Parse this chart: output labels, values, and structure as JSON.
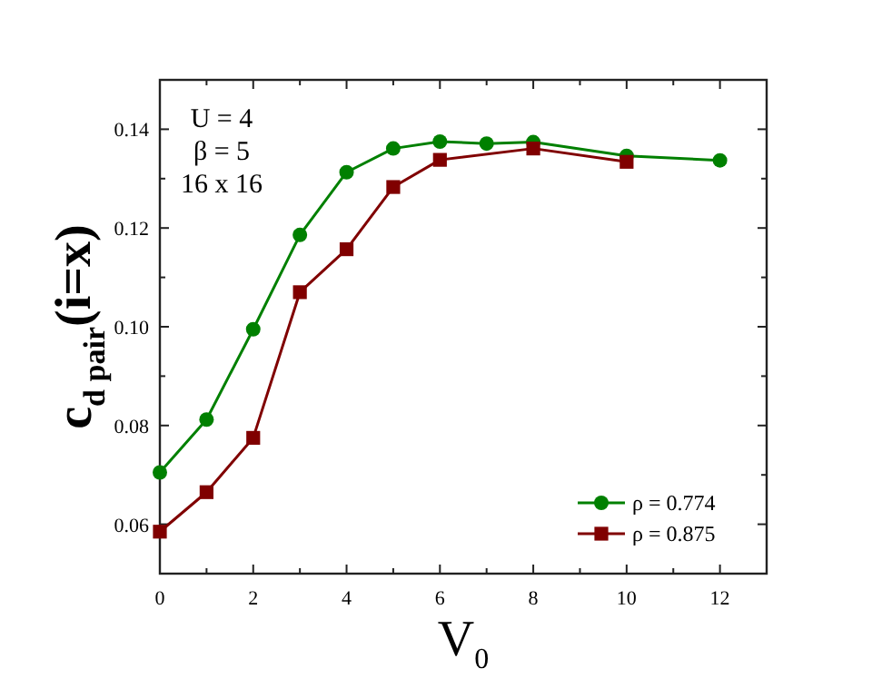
{
  "chart_data": {
    "type": "line",
    "xlabel": "V$_{0}$",
    "ylabel": "c$_{d pair}$(i=x)",
    "annotations": [
      "U = 4",
      "β = 5",
      "16 x 16"
    ],
    "xlim": [
      0,
      13
    ],
    "xticks": [
      0,
      {
        "value": 1,
        "label": null
      },
      2,
      {
        "value": 3,
        "label": null
      },
      4,
      {
        "value": 5,
        "label": null
      },
      6,
      {
        "value": 7,
        "label": null
      },
      8,
      {
        "value": 9,
        "label": null
      },
      10,
      {
        "value": 11,
        "label": null
      },
      12
    ],
    "ylim": [
      0.05,
      0.15
    ],
    "yticks": [
      {
        "value": 0.05,
        "label": null
      },
      0.06,
      {
        "value": 0.07,
        "label": null
      },
      0.08,
      {
        "value": 0.09,
        "label": null
      },
      {
        "value": 0.1,
        "label": "0.10"
      },
      {
        "value": 0.11,
        "label": null
      },
      0.12,
      {
        "value": 0.13,
        "label": null
      },
      0.14,
      {
        "value": 0.15,
        "label": null
      }
    ],
    "legend": "bottom right",
    "grid": false,
    "series": [
      {
        "name": "ρ = 0.774",
        "color": "#008000",
        "marker": "circle",
        "x": [
          0,
          1,
          2,
          3,
          4,
          5,
          6,
          7,
          8,
          10,
          12
        ],
        "values": [
          0.0705,
          0.0812,
          0.0995,
          0.1186,
          0.1313,
          0.1361,
          0.1375,
          0.1371,
          0.1374,
          0.1346,
          0.1337
        ]
      },
      {
        "name": "ρ = 0.875",
        "color": "#800000",
        "marker": "square",
        "x": [
          0,
          1,
          2,
          3,
          4,
          5,
          6,
          8,
          10
        ],
        "values": [
          0.0585,
          0.0665,
          0.0775,
          0.107,
          0.1157,
          0.1283,
          0.1338,
          0.1361,
          0.1334
        ]
      }
    ]
  }
}
